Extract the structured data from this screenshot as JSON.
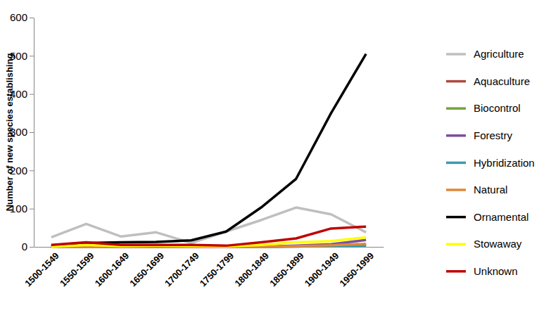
{
  "chart_data": {
    "type": "line",
    "y_label": "Number of new species establishing",
    "categories": [
      "1500-1549",
      "1550-1599",
      "1600-1649",
      "1650-1699",
      "1700-1749",
      "1750-1799",
      "1800-1849",
      "1850-1899",
      "1900-1949",
      "1950-1999"
    ],
    "series": [
      {
        "name": "Agriculture",
        "color": "#bfbfbf",
        "values": [
          25,
          60,
          27,
          38,
          10,
          40,
          70,
          103,
          85,
          38
        ]
      },
      {
        "name": "Aquaculture",
        "color": "#b0473c",
        "values": [
          0,
          0,
          0,
          0,
          0,
          0,
          0,
          2,
          3,
          5
        ]
      },
      {
        "name": "Biocontrol",
        "color": "#77a33d",
        "values": [
          0,
          0,
          0,
          0,
          0,
          0,
          0,
          1,
          3,
          5
        ]
      },
      {
        "name": "Forestry",
        "color": "#7a4f9a",
        "values": [
          0,
          0,
          0,
          0,
          0,
          0,
          0,
          3,
          7,
          18
        ]
      },
      {
        "name": "Hybridization",
        "color": "#3d9ab0",
        "values": [
          0,
          0,
          0,
          0,
          0,
          0,
          0,
          1,
          2,
          3
        ]
      },
      {
        "name": "Natural",
        "color": "#e0883c",
        "values": [
          0,
          0,
          0,
          0,
          0,
          0,
          0,
          2,
          4,
          8
        ]
      },
      {
        "name": "Ornamental",
        "color": "#000000",
        "values": [
          3,
          10,
          12,
          13,
          17,
          40,
          103,
          178,
          350,
          505
        ]
      },
      {
        "name": "Stowaway",
        "color": "#ffff00",
        "values": [
          0,
          5,
          2,
          3,
          2,
          1,
          5,
          12,
          15,
          25
        ]
      },
      {
        "name": "Unknown",
        "color": "#c00000",
        "values": [
          5,
          12,
          5,
          5,
          5,
          3,
          12,
          22,
          48,
          53
        ]
      }
    ],
    "ylim": [
      0,
      600
    ],
    "yticks": [
      0,
      100,
      200,
      300,
      400,
      500,
      600
    ],
    "grid": false,
    "legend": "right"
  }
}
